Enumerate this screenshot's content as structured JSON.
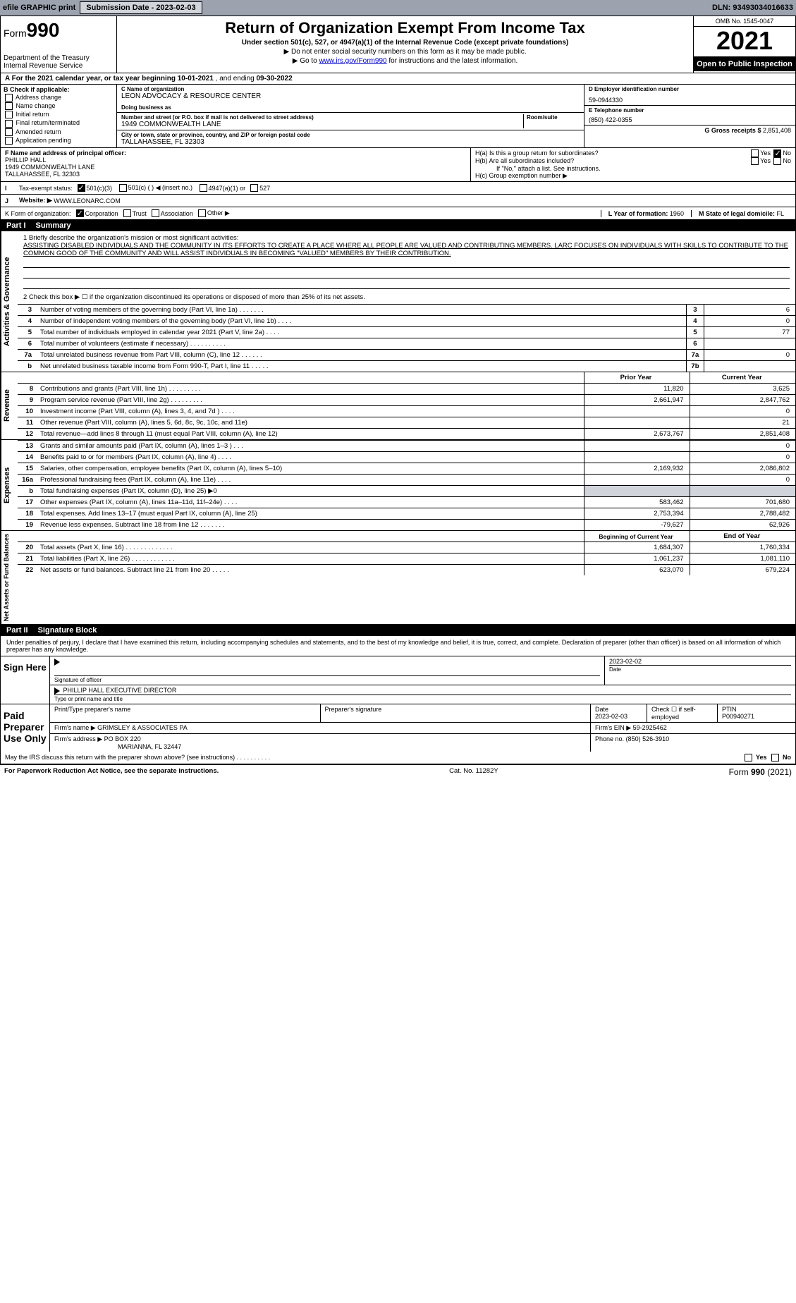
{
  "topbar": {
    "efile_label": "efile GRAPHIC print",
    "submission_label": "Submission Date - 2023-02-03",
    "dln_label": "DLN: 93493034016633"
  },
  "header": {
    "form_word": "Form",
    "form_num": "990",
    "dept": "Department of the Treasury",
    "irs": "Internal Revenue Service",
    "title": "Return of Organization Exempt From Income Tax",
    "sub": "Under section 501(c), 527, or 4947(a)(1) of the Internal Revenue Code (except private foundations)",
    "note1": "▶ Do not enter social security numbers on this form as it may be made public.",
    "note2_pre": "▶ Go to ",
    "note2_link": "www.irs.gov/Form990",
    "note2_post": " for instructions and the latest information.",
    "omb": "OMB No. 1545-0047",
    "year": "2021",
    "open": "Open to Public Inspection"
  },
  "period": {
    "a_label": "A For the 2021 calendar year, or tax year beginning ",
    "begin": "10-01-2021",
    "mid": " , and ending ",
    "end": "09-30-2022"
  },
  "blockB": {
    "header": "B Check if applicable:",
    "items": [
      "Address change",
      "Name change",
      "Initial return",
      "Final return/terminated",
      "Amended return",
      "Application pending"
    ]
  },
  "blockC": {
    "name_lbl": "C Name of organization",
    "name": "LEON ADVOCACY & RESOURCE CENTER",
    "dba_lbl": "Doing business as",
    "dba": "",
    "street_lbl": "Number and street (or P.O. box if mail is not delivered to street address)",
    "room_lbl": "Room/suite",
    "street": "1949 COMMONWEALTH LANE",
    "city_lbl": "City or town, state or province, country, and ZIP or foreign postal code",
    "city": "TALLAHASSEE, FL  32303"
  },
  "blockDE": {
    "d_lbl": "D Employer identification number",
    "d_val": "59-0944330",
    "e_lbl": "E Telephone number",
    "e_val": "(850) 422-0355",
    "g_lbl": "G Gross receipts $ ",
    "g_val": "2,851,408"
  },
  "blockF": {
    "lbl": "F Name and address of principal officer:",
    "name": "PHILLIP HALL",
    "street": "1949 COMMONWEALTH LANE",
    "city": "TALLAHASSEE, FL  32303"
  },
  "blockH": {
    "ha": "H(a)  Is this a group return for subordinates?",
    "hb": "H(b)  Are all subordinates included?",
    "hb_note": "If \"No,\" attach a list. See instructions.",
    "hc": "H(c)  Group exemption number ▶",
    "yes": "Yes",
    "no": "No"
  },
  "taxexempt": {
    "lead": "I",
    "lbl": "Tax-exempt status:",
    "opt1": "501(c)(3)",
    "opt2": "501(c) (   ) ◀ (insert no.)",
    "opt3": "4947(a)(1) or",
    "opt4": "527"
  },
  "website": {
    "lead": "J",
    "lbl": "Website: ▶",
    "val": "WWW.LEONARC.COM"
  },
  "lineK": {
    "lbl": "K Form of organization:",
    "opts": [
      "Corporation",
      "Trust",
      "Association",
      "Other ▶"
    ],
    "l_lbl": "L Year of formation: ",
    "l_val": "1960",
    "m_lbl": "M State of legal domicile: ",
    "m_val": "FL"
  },
  "part1": {
    "hdr_pn": "Part I",
    "hdr_t": "Summary",
    "q1_lbl": "1  Briefly describe the organization's mission or most significant activities:",
    "q1_text": "ASSISTING DISABLED INDIVIDUALS AND THE COMMUNITY IN ITS EFFORTS TO CREATE A PLACE WHERE ALL PEOPLE ARE VALUED AND CONTRIBUTING MEMBERS. LARC FOCUSES ON INDIVIDUALS WITH SKILLS TO CONTRIBUTE TO THE COMMON GOOD OF THE COMMUNITY AND WILL ASSIST INDIVIDUALS IN BECOMING \"VALUED\" MEMBERS BY THEIR CONTRIBUTION.",
    "q2": "2  Check this box ▶ ☐ if the organization discontinued its operations or disposed of more than 25% of its net assets.",
    "rows_a": [
      {
        "n": "3",
        "d": "Number of voting members of the governing body (Part VI, line 1a)  .   .   .   .   .   .   .",
        "rn": "3",
        "v": "6"
      },
      {
        "n": "4",
        "d": "Number of independent voting members of the governing body (Part VI, line 1b)  .   .   .   .",
        "rn": "4",
        "v": "0"
      },
      {
        "n": "5",
        "d": "Total number of individuals employed in calendar year 2021 (Part V, line 2a)  .   .   .   .",
        "rn": "5",
        "v": "77"
      },
      {
        "n": "6",
        "d": "Total number of volunteers (estimate if necessary)   .   .   .   .   .   .   .   .   .   .",
        "rn": "6",
        "v": ""
      },
      {
        "n": "7a",
        "d": "Total unrelated business revenue from Part VIII, column (C), line 12  .   .   .   .   .   .",
        "rn": "7a",
        "v": "0"
      },
      {
        "n": "b",
        "d": "Net unrelated business taxable income from Form 990-T, Part I, line 11   .   .   .   .   .",
        "rn": "7b",
        "v": ""
      }
    ],
    "col_py": "Prior Year",
    "col_cy": "Current Year",
    "rows_rev": [
      {
        "n": "8",
        "d": "Contributions and grants (Part VIII, line 1h)   .   .   .   .   .   .   .   .   .",
        "py": "11,820",
        "cy": "3,625"
      },
      {
        "n": "9",
        "d": "Program service revenue (Part VIII, line 2g)   .   .   .   .   .   .   .   .   .",
        "py": "2,661,947",
        "cy": "2,847,762"
      },
      {
        "n": "10",
        "d": "Investment income (Part VIII, column (A), lines 3, 4, and 7d )  .   .   .   .",
        "py": "",
        "cy": "0"
      },
      {
        "n": "11",
        "d": "Other revenue (Part VIII, column (A), lines 5, 6d, 8c, 9c, 10c, and 11e)",
        "py": "",
        "cy": "21"
      },
      {
        "n": "12",
        "d": "Total revenue—add lines 8 through 11 (must equal Part VIII, column (A), line 12)",
        "py": "2,673,767",
        "cy": "2,851,408"
      }
    ],
    "rows_exp": [
      {
        "n": "13",
        "d": "Grants and similar amounts paid (Part IX, column (A), lines 1–3 )  .   .   .",
        "py": "",
        "cy": "0"
      },
      {
        "n": "14",
        "d": "Benefits paid to or for members (Part IX, column (A), line 4)  .   .   .   .",
        "py": "",
        "cy": "0"
      },
      {
        "n": "15",
        "d": "Salaries, other compensation, employee benefits (Part IX, column (A), lines 5–10)",
        "py": "2,169,932",
        "cy": "2,086,802"
      },
      {
        "n": "16a",
        "d": "Professional fundraising fees (Part IX, column (A), line 11e)  .   .   .   .",
        "py": "",
        "cy": "0"
      },
      {
        "n": "b",
        "d": "Total fundraising expenses (Part IX, column (D), line 25) ▶0",
        "py": "SHADE",
        "cy": "SHADE"
      },
      {
        "n": "17",
        "d": "Other expenses (Part IX, column (A), lines 11a–11d, 11f–24e)   .   .   .   .",
        "py": "583,462",
        "cy": "701,680"
      },
      {
        "n": "18",
        "d": "Total expenses. Add lines 13–17 (must equal Part IX, column (A), line 25)",
        "py": "2,753,394",
        "cy": "2,788,482"
      },
      {
        "n": "19",
        "d": "Revenue less expenses. Subtract line 18 from line 12 .   .   .   .   .   .   .",
        "py": "-79,627",
        "cy": "62,926"
      }
    ],
    "col_boy": "Beginning of Current Year",
    "col_eoy": "End of Year",
    "rows_na": [
      {
        "n": "20",
        "d": "Total assets (Part X, line 16)  .   .   .   .   .   .   .   .   .   .   .   .   .",
        "py": "1,684,307",
        "cy": "1,760,334"
      },
      {
        "n": "21",
        "d": "Total liabilities (Part X, line 26)  .   .   .   .   .   .   .   .   .   .   .   .",
        "py": "1,061,237",
        "cy": "1,081,110"
      },
      {
        "n": "22",
        "d": "Net assets or fund balances. Subtract line 21 from line 20  .   .   .   .   .",
        "py": "623,070",
        "cy": "679,224"
      }
    ],
    "side_ag": "Activities & Governance",
    "side_rev": "Revenue",
    "side_exp": "Expenses",
    "side_na": "Net Assets or Fund Balances"
  },
  "part2": {
    "hdr_pn": "Part II",
    "hdr_t": "Signature Block",
    "penalty": "Under penalties of perjury, I declare that I have examined this return, including accompanying schedules and statements, and to the best of my knowledge and belief, it is true, correct, and complete. Declaration of preparer (other than officer) is based on all information of which preparer has any knowledge.",
    "sign_here": "Sign Here",
    "sig_officer": "Signature of officer",
    "sig_date": "2023-02-02",
    "date_lbl": "Date",
    "name_title": "PHILLIP HALL  EXECUTIVE DIRECTOR",
    "name_title_lbl": "Type or print name and title",
    "paid": "Paid Preparer Use Only",
    "prep_name_lbl": "Print/Type preparer's name",
    "prep_sig_lbl": "Preparer's signature",
    "prep_date_lbl": "Date",
    "prep_date": "2023-02-03",
    "prep_check_lbl": "Check ☐ if self-employed",
    "ptin_lbl": "PTIN",
    "ptin": "P00940271",
    "firm_name_lbl": "Firm's name     ▶",
    "firm_name": "GRIMSLEY & ASSOCIATES PA",
    "firm_ein_lbl": "Firm's EIN ▶",
    "firm_ein": "59-2925462",
    "firm_addr_lbl": "Firm's address ▶",
    "firm_addr1": "PO BOX 220",
    "firm_addr2": "MARIANNA, FL  32447",
    "firm_phone_lbl": "Phone no.",
    "firm_phone": "(850) 526-3910",
    "may_irs": "May the IRS discuss this return with the preparer shown above? (see instructions)  .   .   .   .   .   .   .   .   .   ."
  },
  "footer": {
    "left": "For Paperwork Reduction Act Notice, see the separate instructions.",
    "mid": "Cat. No. 11282Y",
    "right": "Form 990 (2021)"
  }
}
